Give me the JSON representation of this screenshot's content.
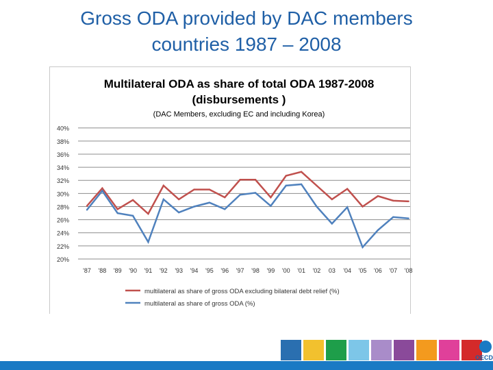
{
  "slide": {
    "title_line1": "Gross ODA provided by DAC members",
    "title_line2": "countries 1987 – 2008"
  },
  "footer": {
    "logo_text": "OECD",
    "brand_color": "#1a7ac4",
    "tile_colors": [
      "#2a6fb0",
      "#f2c12e",
      "#1e9e4a",
      "#7dc6e8",
      "#a98cc9",
      "#8a4a9a",
      "#f39a1e",
      "#e0409a",
      "#d42a2a"
    ]
  },
  "chart_data": {
    "type": "line",
    "title": "Multilateral ODA as share of total ODA 1987-2008",
    "title_line2": "(disbursements )",
    "subtitle": "(DAC Members, excluding EC and including Korea)",
    "categories": [
      "'87",
      "'88",
      "'89",
      "'90",
      "'91",
      "'92",
      "'93",
      "'94",
      "'95",
      "'96",
      "'97",
      "'98",
      "'99",
      "'00",
      "'01",
      "'02",
      "03",
      "'04",
      "'05",
      "'06",
      "'07",
      "'08"
    ],
    "y_ticks": [
      "40%",
      "38%",
      "36%",
      "34%",
      "32%",
      "30%",
      "28%",
      "26%",
      "24%",
      "22%",
      "20%"
    ],
    "ylim": [
      20,
      40
    ],
    "grid": true,
    "legend_position": "bottom",
    "series": [
      {
        "name": "multilateral as share of gross ODA excluding bilateral debt relief (%)",
        "color": "#c0504d",
        "values": [
          28.1,
          30.8,
          27.6,
          29.0,
          26.9,
          31.2,
          29.1,
          30.6,
          30.6,
          29.4,
          32.1,
          32.1,
          29.4,
          32.7,
          33.3,
          31.2,
          29.1,
          30.7,
          28.0,
          29.6,
          28.9,
          28.8
        ]
      },
      {
        "name": "multilateral as share of gross ODA (%)",
        "color": "#4f81bd",
        "values": [
          27.5,
          30.4,
          27.0,
          26.6,
          22.6,
          29.1,
          27.1,
          28.0,
          28.6,
          27.6,
          29.8,
          30.1,
          28.1,
          31.2,
          31.4,
          28.0,
          25.4,
          27.9,
          21.8,
          24.4,
          26.4,
          26.2
        ]
      }
    ]
  }
}
